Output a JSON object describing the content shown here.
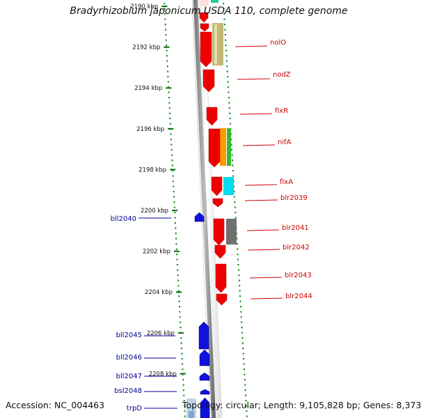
{
  "title": "Bradyrhizobium japonicum USDA 110, complete genome",
  "footer": {
    "accession": "Accession: NC_004463",
    "summary": "Topology: circular; Length: 9,105,828 bp; Genes: 8,373"
  },
  "colors": {
    "forward_gene": "#ee0000",
    "reverse_gene": "#1111dd",
    "label_forward": "#cc0000",
    "label_reverse": "#000099",
    "ruler_mark": "#117711",
    "dots": "#118811"
  },
  "ruler": [
    {
      "label": "2190 kbp",
      "kbp": 2190
    },
    {
      "label": "2192 kbp",
      "kbp": 2192
    },
    {
      "label": "2194 kbp",
      "kbp": 2194
    },
    {
      "label": "2196 kbp",
      "kbp": 2196
    },
    {
      "label": "2198 kbp",
      "kbp": 2198
    },
    {
      "label": "2200 kbp",
      "kbp": 2200
    },
    {
      "label": "2202 kbp",
      "kbp": 2202
    },
    {
      "label": "2204 kbp",
      "kbp": 2204
    },
    {
      "label": "2206 kbp",
      "kbp": 2206
    },
    {
      "label": "2208 kbp",
      "kbp": 2208
    }
  ],
  "genes": [
    {
      "name": "nolO",
      "strand": "+"
    },
    {
      "name": "nodZ",
      "strand": "+"
    },
    {
      "name": "fixR",
      "strand": "+"
    },
    {
      "name": "nifA",
      "strand": "+"
    },
    {
      "name": "fixA",
      "strand": "+"
    },
    {
      "name": "blr2039",
      "strand": "+"
    },
    {
      "name": "bll2040",
      "strand": "-"
    },
    {
      "name": "blr2041",
      "strand": "+"
    },
    {
      "name": "blr2042",
      "strand": "+"
    },
    {
      "name": "blr2043",
      "strand": "+"
    },
    {
      "name": "blr2044",
      "strand": "+"
    },
    {
      "name": "bll2045",
      "strand": "-"
    },
    {
      "name": "bll2046",
      "strand": "-"
    },
    {
      "name": "bll2047",
      "strand": "-"
    },
    {
      "name": "bsl2048",
      "strand": "-"
    },
    {
      "name": "trpD",
      "strand": "-"
    }
  ]
}
